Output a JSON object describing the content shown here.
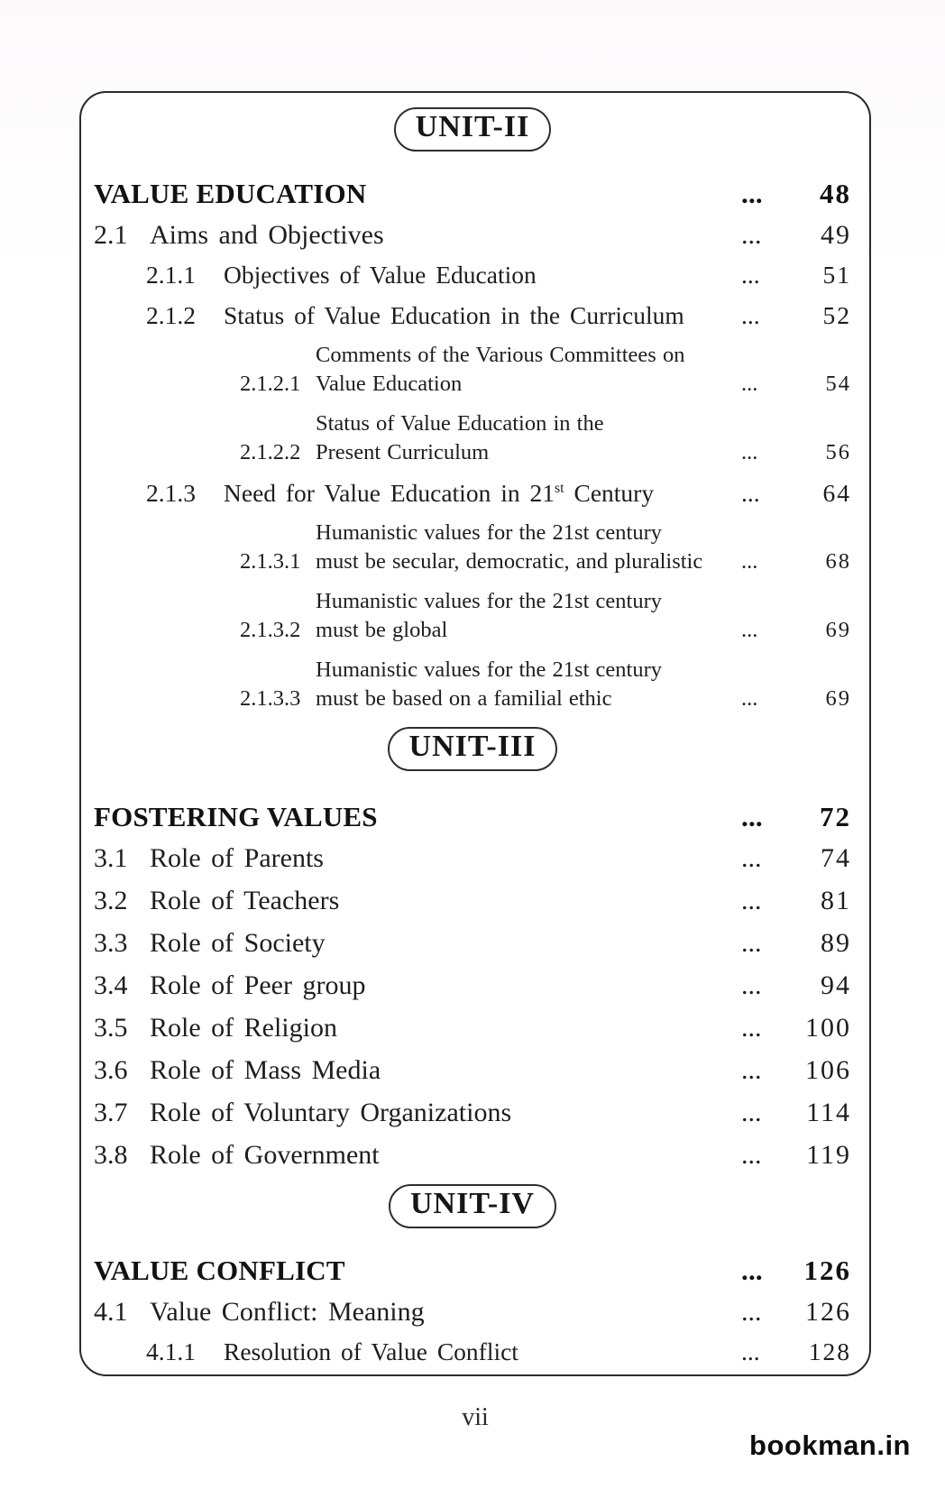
{
  "toc": {
    "dots": "...",
    "sections": [
      {
        "unit_label": "UNIT-II",
        "entries": [
          {
            "number": "",
            "lines": [
              "VALUE EDUCATION"
            ],
            "page": "48",
            "level": 0,
            "bold": true
          },
          {
            "number": "2.1",
            "lines": [
              "Aims and Objectives"
            ],
            "page": "49",
            "level": 1
          },
          {
            "number": "2.1.1",
            "lines": [
              "Objectives of Value Education"
            ],
            "page": "51",
            "level": 2
          },
          {
            "number": "2.1.2",
            "lines": [
              "Status of Value Education in the Curriculum"
            ],
            "page": "52",
            "level": 2
          },
          {
            "number": "2.1.2.1",
            "lines": [
              "Comments of the Various Committees on",
              "Value Education"
            ],
            "page": "54",
            "level": 3
          },
          {
            "number": "2.1.2.2",
            "lines": [
              "Status of Value Education in the",
              "Present Curriculum"
            ],
            "page": "56",
            "level": 3
          },
          {
            "number": "2.1.3",
            "lines": [
              "Need for Value Education in 21st Century"
            ],
            "page": "64",
            "level": 2,
            "ordinal_superscript": true
          },
          {
            "number": "2.1.3.1",
            "lines": [
              "Humanistic values for the 21st century",
              "must be secular, democratic, and pluralistic"
            ],
            "page": "68",
            "level": 3
          },
          {
            "number": "2.1.3.2",
            "lines": [
              "Humanistic values for the 21st century",
              "must be global"
            ],
            "page": "69",
            "level": 3
          },
          {
            "number": "2.1.3.3",
            "lines": [
              "Humanistic values for the 21st century",
              "must be based on a familial ethic"
            ],
            "page": "69",
            "level": 3
          }
        ]
      },
      {
        "unit_label": "UNIT-III",
        "entries": [
          {
            "number": "",
            "lines": [
              "FOSTERING VALUES"
            ],
            "page": "72",
            "level": 0,
            "bold": true
          },
          {
            "number": "3.1",
            "lines": [
              "Role of Parents"
            ],
            "page": "74",
            "level": 1
          },
          {
            "number": "3.2",
            "lines": [
              "Role of Teachers"
            ],
            "page": "81",
            "level": 1
          },
          {
            "number": "3.3",
            "lines": [
              "Role of Society"
            ],
            "page": "89",
            "level": 1
          },
          {
            "number": "3.4",
            "lines": [
              "Role of Peer group"
            ],
            "page": "94",
            "level": 1
          },
          {
            "number": "3.5",
            "lines": [
              "Role of Religion"
            ],
            "page": "100",
            "level": 1
          },
          {
            "number": "3.6",
            "lines": [
              "Role of Mass Media"
            ],
            "page": "106",
            "level": 1
          },
          {
            "number": "3.7",
            "lines": [
              "Role of Voluntary Organizations"
            ],
            "page": "114",
            "level": 1
          },
          {
            "number": "3.8",
            "lines": [
              "Role of Government"
            ],
            "page": "119",
            "level": 1
          }
        ]
      },
      {
        "unit_label": "UNIT-IV",
        "entries": [
          {
            "number": "",
            "lines": [
              "VALUE CONFLICT"
            ],
            "page": "126",
            "level": 0,
            "bold": true
          },
          {
            "number": "4.1",
            "lines": [
              "Value Conflict: Meaning"
            ],
            "page": "126",
            "level": 1
          },
          {
            "number": "4.1.1",
            "lines": [
              "Resolution of Value Conflict"
            ],
            "page": "128",
            "level": 2
          }
        ]
      }
    ]
  },
  "footer": {
    "page_number": "vii",
    "watermark": "bookman.in"
  },
  "colors": {
    "ink": "#1e1e1e",
    "border": "#2b2b2b",
    "paper": "#ffffff"
  }
}
